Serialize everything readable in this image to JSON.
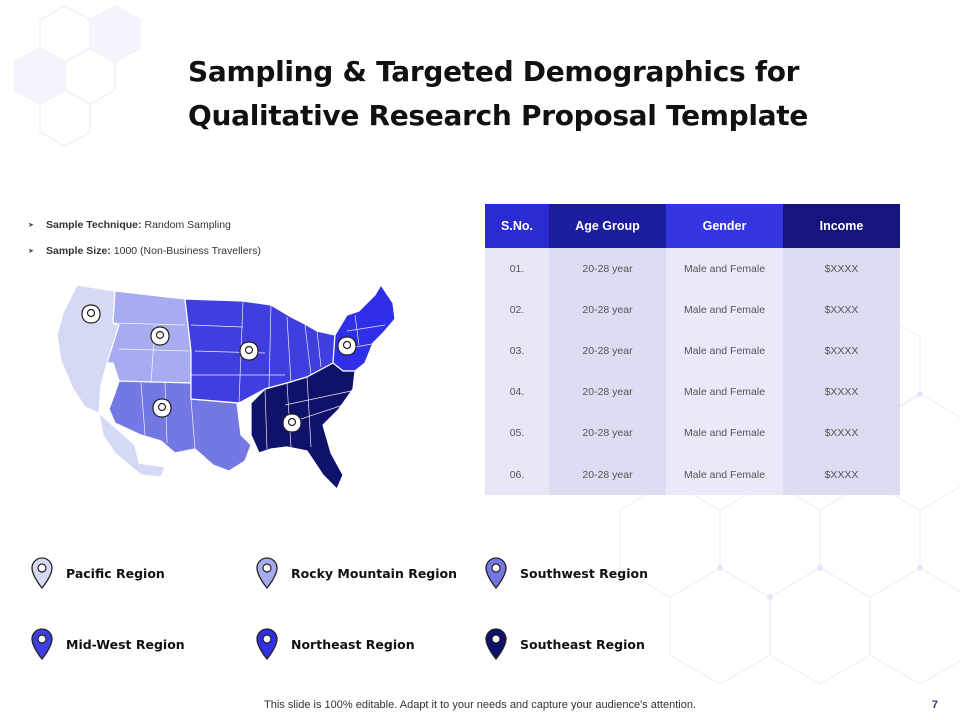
{
  "slide": {
    "title": "Sampling & Targeted Demographics for Qualitative Research Proposal Template",
    "footer": "This slide is 100% editable. Adapt it to your needs and capture your audience's attention.",
    "page_number": "7"
  },
  "bullets": [
    {
      "label": "Sample Technique:",
      "value": "Random Sampling"
    },
    {
      "label": "Sample Size:",
      "value": "1000 (Non-Business Travellers)"
    }
  ],
  "table": {
    "headers": [
      "S.No.",
      "Age Group",
      "Gender",
      "Income"
    ],
    "rows": [
      [
        "01.",
        "20-28 year",
        "Male and Female",
        "$XXXX"
      ],
      [
        "02.",
        "20-28 year",
        "Male and Female",
        "$XXXX"
      ],
      [
        "03.",
        "20-28 year",
        "Male and Female",
        "$XXXX"
      ],
      [
        "04.",
        "20-28 year",
        "Male and Female",
        "$XXXX"
      ],
      [
        "05.",
        "20-28 year",
        "Male and Female",
        "$XXXX"
      ],
      [
        "06.",
        "20-28 year",
        "Male and Female",
        "$XXXX"
      ]
    ]
  },
  "legend": [
    {
      "label": "Pacific Region",
      "color": "#d6d9f6"
    },
    {
      "label": "Rocky Mountain Region",
      "color": "#a7abef"
    },
    {
      "label": "Southwest Region",
      "color": "#7378e2"
    },
    {
      "label": "Mid-West Region",
      "color": "#3f3fe0"
    },
    {
      "label": "Northeast Region",
      "color": "#2f2fe8"
    },
    {
      "label": "Southeast Region",
      "color": "#0f126a"
    }
  ],
  "colors": {
    "pacific": "#d6d9f6",
    "rocky_mountain": "#a7abef",
    "southwest": "#7378e2",
    "midwest": "#3f3fe0",
    "northeast": "#2f2fe8",
    "southeast": "#0f126a"
  },
  "icons": {
    "map_marker": "map-pin-icon",
    "bullet": "arrow-bullet-icon"
  }
}
